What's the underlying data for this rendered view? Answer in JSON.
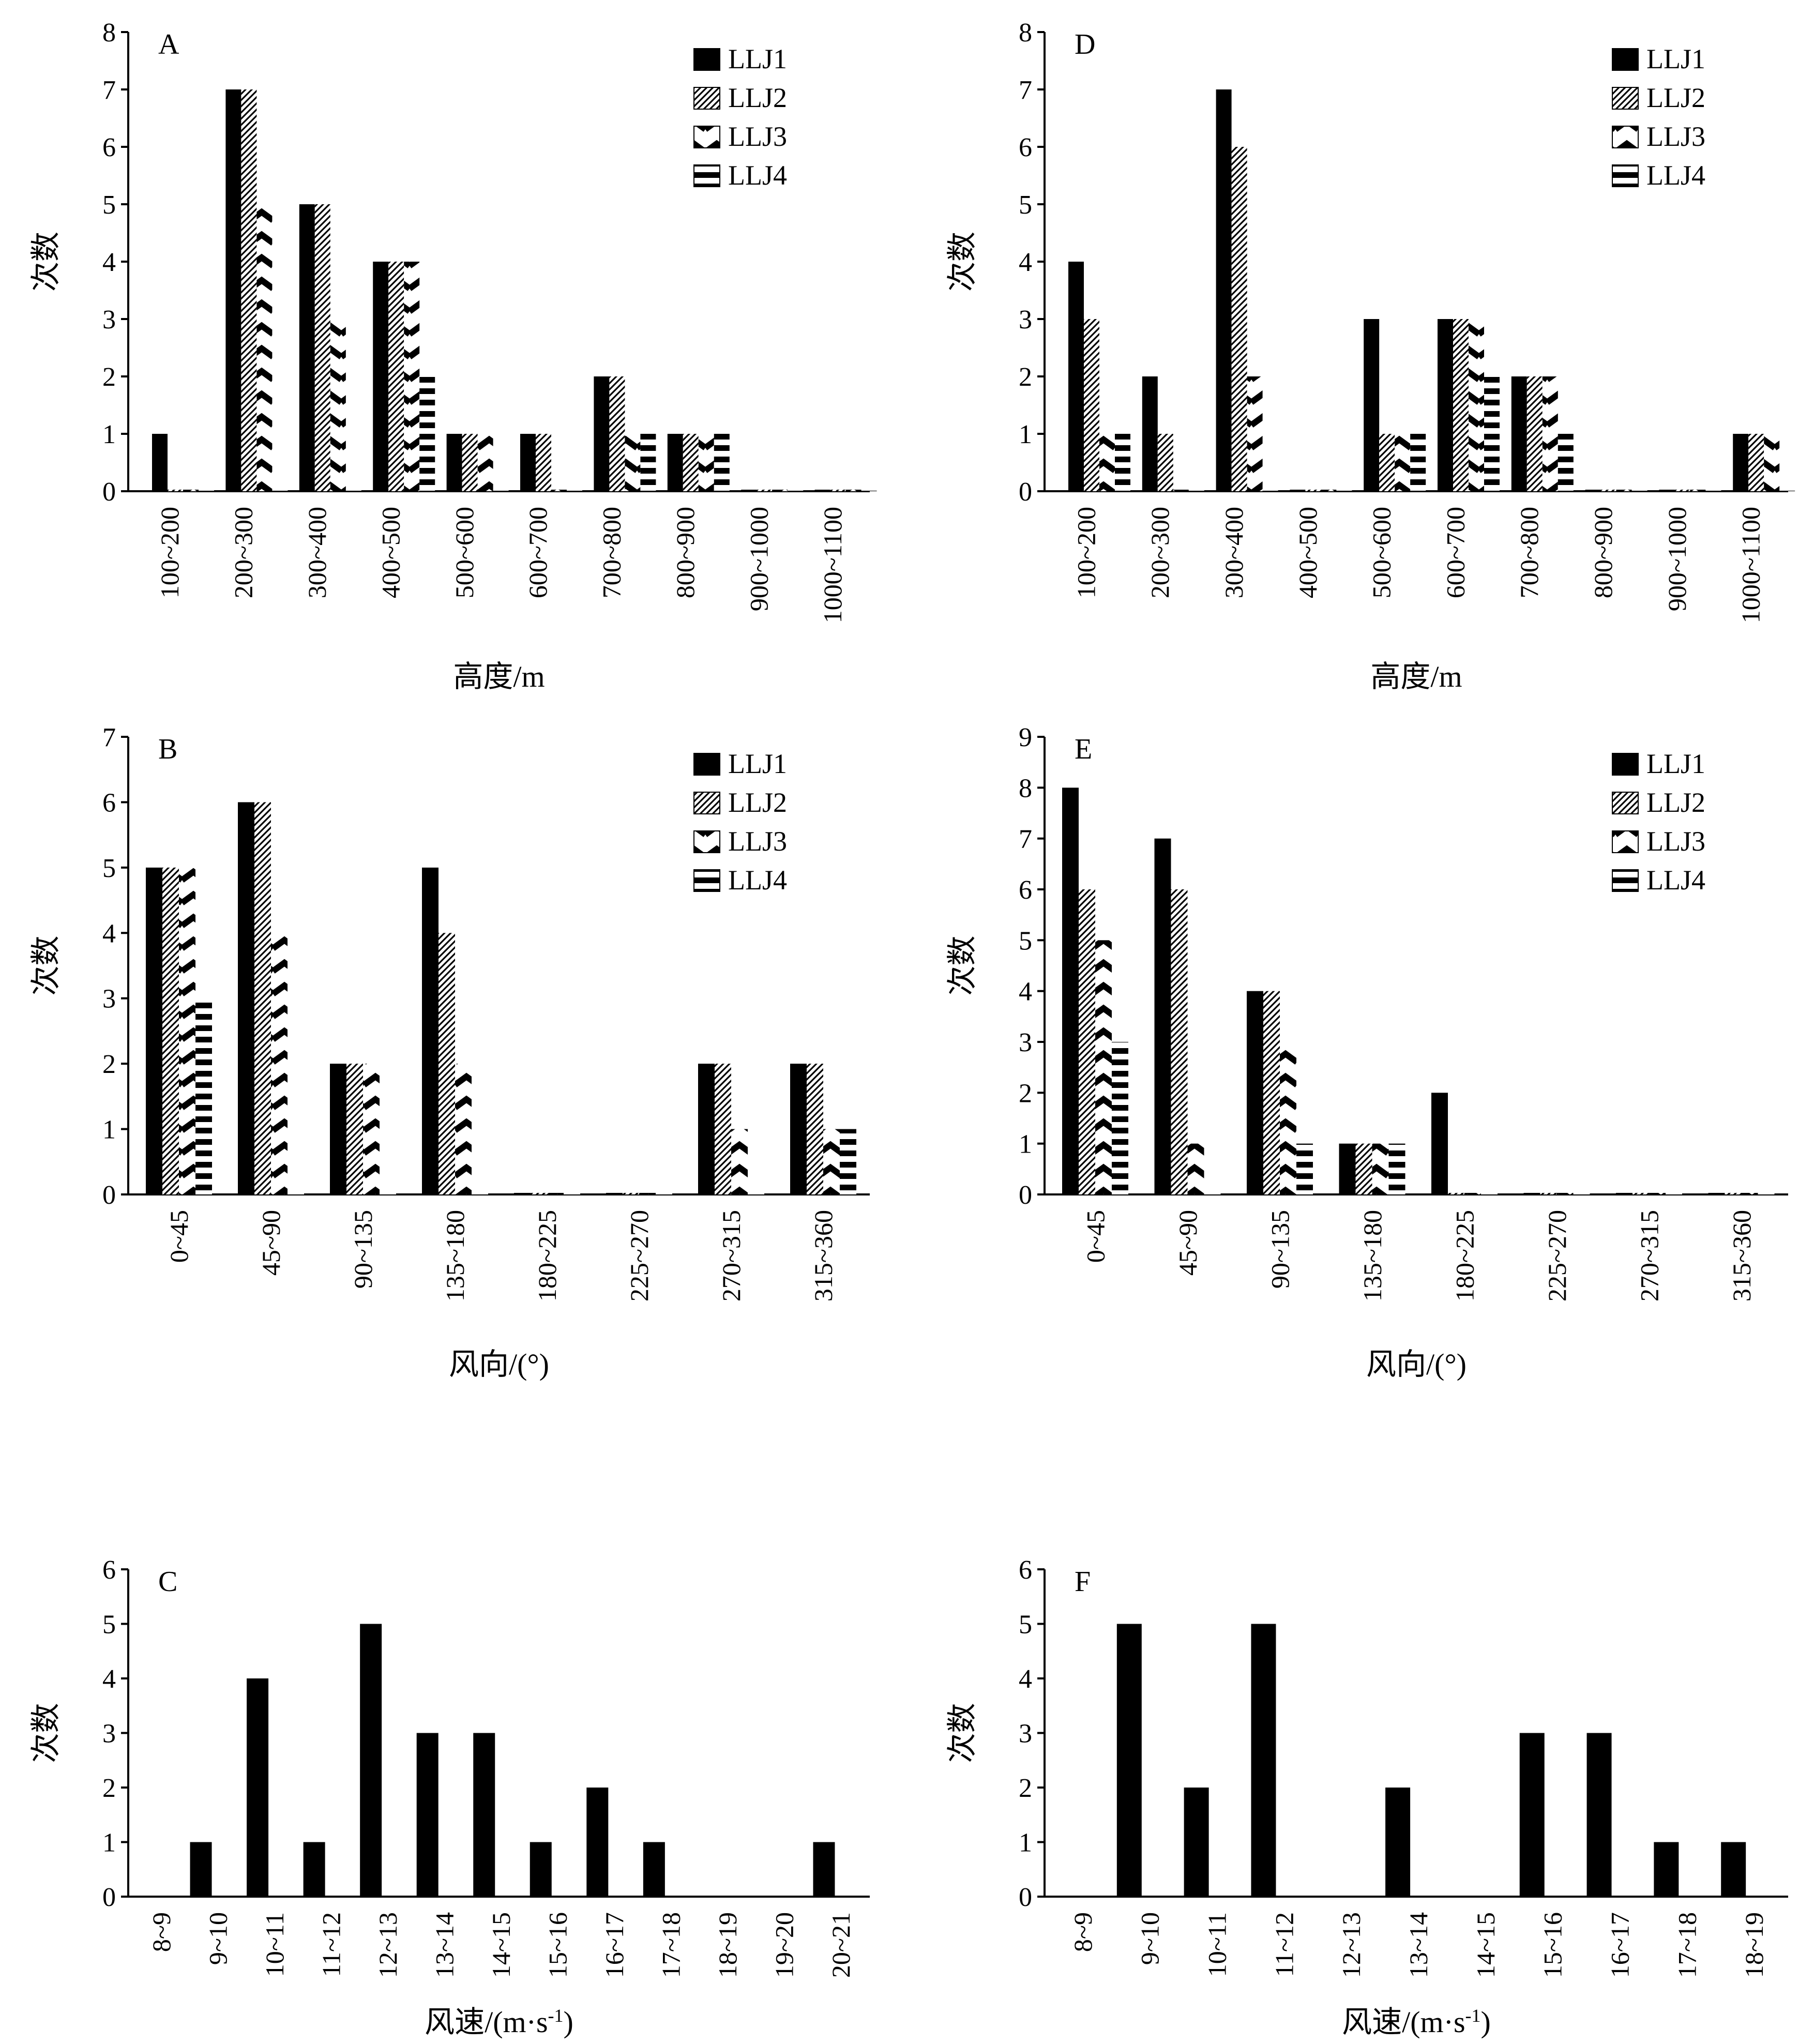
{
  "chart_data": [
    {
      "id": "A",
      "type": "bar",
      "panel_label": "A",
      "xlabel": "高度/m",
      "ylabel": "次数",
      "ylim": [
        0,
        8
      ],
      "yticks": [
        0,
        1,
        2,
        3,
        4,
        5,
        6,
        7,
        8
      ],
      "legend": "top-right",
      "categories": [
        "100~200",
        "200~300",
        "300~400",
        "400~500",
        "500~600",
        "600~700",
        "700~800",
        "800~900",
        "900~1000",
        "1000~1100"
      ],
      "series": [
        {
          "name": "LLJ1",
          "pattern": "solid",
          "values": [
            1,
            7,
            5,
            4,
            1,
            1,
            2,
            1,
            0,
            0
          ]
        },
        {
          "name": "LLJ2",
          "pattern": "dots",
          "values": [
            0,
            7,
            5,
            4,
            1,
            1,
            2,
            1,
            0,
            0
          ]
        },
        {
          "name": "LLJ3",
          "pattern": "zigzag",
          "values": [
            0,
            5,
            3,
            4,
            1,
            0,
            1,
            1,
            0,
            0
          ]
        },
        {
          "name": "LLJ4",
          "pattern": "stripes",
          "values": [
            0,
            0,
            0,
            2,
            0,
            0,
            1,
            1,
            0,
            0
          ]
        }
      ]
    },
    {
      "id": "D",
      "type": "bar",
      "panel_label": "D",
      "xlabel": "高度/m",
      "ylabel": "次数",
      "ylim": [
        0,
        8
      ],
      "yticks": [
        0,
        1,
        2,
        3,
        4,
        5,
        6,
        7,
        8
      ],
      "legend": "top-right",
      "categories": [
        "100~200",
        "200~300",
        "300~400",
        "400~500",
        "500~600",
        "600~700",
        "700~800",
        "800~900",
        "900~1000",
        "1000~1100"
      ],
      "series": [
        {
          "name": "LLJ1",
          "pattern": "solid",
          "values": [
            4,
            2,
            7,
            0,
            3,
            3,
            2,
            0,
            0,
            1
          ]
        },
        {
          "name": "LLJ2",
          "pattern": "dots",
          "values": [
            3,
            1,
            6,
            0,
            1,
            3,
            2,
            0,
            0,
            1
          ]
        },
        {
          "name": "LLJ3",
          "pattern": "zigzag",
          "values": [
            1,
            0,
            2,
            0,
            1,
            3,
            2,
            0,
            0,
            1
          ]
        },
        {
          "name": "LLJ4",
          "pattern": "stripes",
          "values": [
            1,
            0,
            0,
            0,
            1,
            2,
            1,
            0,
            0,
            0
          ]
        }
      ]
    },
    {
      "id": "B",
      "type": "bar",
      "panel_label": "B",
      "xlabel": "风向/(°)",
      "ylabel": "次数",
      "ylim": [
        0,
        7
      ],
      "yticks": [
        0,
        1,
        2,
        3,
        4,
        5,
        6,
        7
      ],
      "legend": "top-right",
      "categories": [
        "0~45",
        "45~90",
        "90~135",
        "135~180",
        "180~225",
        "225~270",
        "270~315",
        "315~360"
      ],
      "series": [
        {
          "name": "LLJ1",
          "pattern": "solid",
          "values": [
            5,
            6,
            2,
            5,
            0,
            0,
            2,
            2
          ]
        },
        {
          "name": "LLJ2",
          "pattern": "dots",
          "values": [
            5,
            6,
            2,
            4,
            0,
            0,
            2,
            2
          ]
        },
        {
          "name": "LLJ3",
          "pattern": "zigzag",
          "values": [
            5,
            4,
            2,
            2,
            0,
            0,
            1,
            1
          ]
        },
        {
          "name": "LLJ4",
          "pattern": "stripes",
          "values": [
            3,
            0,
            0,
            0,
            0,
            0,
            0,
            1
          ]
        }
      ]
    },
    {
      "id": "E",
      "type": "bar",
      "panel_label": "E",
      "xlabel": "风向/(°)",
      "ylabel": "次数",
      "ylim": [
        0,
        9
      ],
      "yticks": [
        0,
        1,
        2,
        3,
        4,
        5,
        6,
        7,
        8,
        9
      ],
      "legend": "top-right",
      "categories": [
        "0~45",
        "45~90",
        "90~135",
        "135~180",
        "180~225",
        "225~270",
        "270~315",
        "315~360"
      ],
      "series": [
        {
          "name": "LLJ1",
          "pattern": "solid",
          "values": [
            8,
            7,
            4,
            1,
            2,
            0,
            0,
            0
          ]
        },
        {
          "name": "LLJ2",
          "pattern": "dots",
          "values": [
            6,
            6,
            4,
            1,
            0,
            0,
            0,
            0
          ]
        },
        {
          "name": "LLJ3",
          "pattern": "zigzag",
          "values": [
            5,
            1,
            3,
            1,
            0,
            0,
            0,
            0
          ]
        },
        {
          "name": "LLJ4",
          "pattern": "stripes",
          "values": [
            3,
            0,
            1,
            1,
            0,
            0,
            0,
            0
          ]
        }
      ]
    },
    {
      "id": "C",
      "type": "bar",
      "panel_label": "C",
      "xlabel": "风速/(m·s",
      "xlabel_sup": "-1",
      "xlabel_tail": ")",
      "ylabel": "次数",
      "ylim": [
        0,
        6
      ],
      "yticks": [
        0,
        1,
        2,
        3,
        4,
        5,
        6
      ],
      "categories": [
        "8~9",
        "9~10",
        "10~11",
        "11~12",
        "12~13",
        "13~14",
        "14~15",
        "15~16",
        "16~17",
        "17~18",
        "18~19",
        "19~20",
        "20~21"
      ],
      "series": [
        {
          "pattern": "solid",
          "values": [
            0,
            1,
            4,
            1,
            5,
            3,
            3,
            1,
            2,
            1,
            0,
            0,
            1
          ]
        }
      ]
    },
    {
      "id": "F",
      "type": "bar",
      "panel_label": "F",
      "xlabel": "风速/(m·s",
      "xlabel_sup": "-1",
      "xlabel_tail": ")",
      "ylabel": "次数",
      "ylim": [
        0,
        6
      ],
      "yticks": [
        0,
        1,
        2,
        3,
        4,
        5,
        6
      ],
      "categories": [
        "8~9",
        "9~10",
        "10~11",
        "11~12",
        "12~13",
        "13~14",
        "14~15",
        "15~16",
        "16~17",
        "17~18",
        "18~19"
      ],
      "series": [
        {
          "pattern": "solid",
          "values": [
            0,
            5,
            2,
            5,
            0,
            2,
            0,
            3,
            3,
            1,
            1
          ]
        }
      ]
    }
  ]
}
